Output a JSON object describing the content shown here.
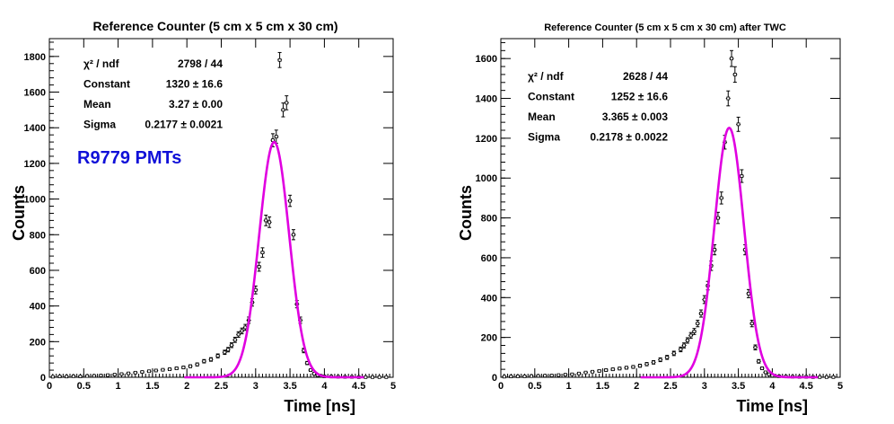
{
  "chart_data": [
    {
      "type": "scatter",
      "title": "Reference Counter (5 cm x 5 cm x 30 cm)",
      "xlabel": "Time [ns]",
      "ylabel": "Counts",
      "xlim": [
        0,
        5
      ],
      "ylim": [
        0,
        1900
      ],
      "x_ticks": [
        "0",
        "0.5",
        "1",
        "1.5",
        "2",
        "2.5",
        "3",
        "3.5",
        "4",
        "4.5",
        "5"
      ],
      "y_ticks": [
        "0",
        "200",
        "400",
        "600",
        "800",
        "1000",
        "1200",
        "1400",
        "1600",
        "1800"
      ],
      "stats": [
        {
          "label": "χ² / ndf",
          "value": "2798 / 44"
        },
        {
          "label": "Constant",
          "value": "1320 ± 16.6"
        },
        {
          "label": "Mean",
          "value": "3.27 ± 0.00"
        },
        {
          "label": "Sigma",
          "value": "0.2177 ± 0.0021"
        }
      ],
      "annotation": "R9779 PMTs",
      "annotation_color": "#1010d8",
      "fit": {
        "type": "gaussian",
        "constant": 1320,
        "mean": 3.27,
        "sigma": 0.2177,
        "color": "#e000e0"
      },
      "series": [
        {
          "x": [
            0.05,
            0.15,
            0.25,
            0.35,
            0.45,
            0.55,
            0.65,
            0.75,
            0.85,
            0.95,
            1.05,
            1.15,
            1.25,
            1.35,
            1.45,
            1.55,
            1.65,
            1.75,
            1.85,
            1.95,
            2.05,
            2.15,
            2.25,
            2.35,
            2.45,
            2.55,
            2.6,
            2.65,
            2.7,
            2.75,
            2.8,
            2.85,
            2.9,
            2.95,
            3.0,
            3.05,
            3.1,
            3.15,
            3.2,
            3.25,
            3.3,
            3.35,
            3.4,
            3.45,
            3.5,
            3.55,
            3.6,
            3.65,
            3.7,
            3.75,
            3.8,
            3.85,
            3.9,
            3.95,
            4.0,
            4.1,
            4.2,
            4.3,
            4.4,
            4.5,
            4.6,
            4.7,
            4.8,
            4.9
          ],
          "y": [
            3,
            5,
            4,
            6,
            5,
            7,
            8,
            10,
            12,
            15,
            18,
            22,
            26,
            30,
            34,
            38,
            42,
            45,
            50,
            55,
            62,
            72,
            90,
            100,
            120,
            140,
            155,
            180,
            210,
            240,
            260,
            280,
            320,
            420,
            490,
            620,
            700,
            880,
            870,
            1330,
            1350,
            1780,
            1500,
            1540,
            990,
            800,
            410,
            320,
            150,
            80,
            40,
            20,
            12,
            8,
            5,
            4,
            3,
            2,
            2,
            1,
            1,
            1,
            1,
            1
          ]
        }
      ]
    },
    {
      "type": "scatter",
      "title": "Reference Counter (5 cm x 5 cm x 30 cm) after TWC",
      "xlabel": "Time [ns]",
      "ylabel": "Counts",
      "xlim": [
        0,
        5
      ],
      "ylim": [
        0,
        1700
      ],
      "x_ticks": [
        "0",
        "0.5",
        "1",
        "1.5",
        "2",
        "2.5",
        "3",
        "3.5",
        "4",
        "4.5",
        "5"
      ],
      "y_ticks": [
        "0",
        "200",
        "400",
        "600",
        "800",
        "1000",
        "1200",
        "1400",
        "1600"
      ],
      "stats": [
        {
          "label": "χ² / ndf",
          "value": "2628 / 44"
        },
        {
          "label": "Constant",
          "value": "1252 ± 16.6"
        },
        {
          "label": "Mean",
          "value": "3.365 ± 0.003"
        },
        {
          "label": "Sigma",
          "value": "0.2178 ± 0.0022"
        }
      ],
      "fit": {
        "type": "gaussian",
        "constant": 1252,
        "mean": 3.365,
        "sigma": 0.2178,
        "color": "#e000e0"
      },
      "series": [
        {
          "x": [
            0.05,
            0.15,
            0.25,
            0.35,
            0.45,
            0.55,
            0.65,
            0.75,
            0.85,
            0.95,
            1.05,
            1.15,
            1.25,
            1.35,
            1.45,
            1.55,
            1.65,
            1.75,
            1.85,
            1.95,
            2.05,
            2.15,
            2.25,
            2.35,
            2.45,
            2.55,
            2.65,
            2.7,
            2.75,
            2.8,
            2.85,
            2.9,
            2.95,
            3.0,
            3.05,
            3.1,
            3.15,
            3.2,
            3.25,
            3.3,
            3.35,
            3.4,
            3.45,
            3.5,
            3.55,
            3.6,
            3.65,
            3.7,
            3.75,
            3.8,
            3.85,
            3.9,
            3.95,
            4.0,
            4.1,
            4.2,
            4.3,
            4.4,
            4.5,
            4.6,
            4.7,
            4.8,
            4.9
          ],
          "y": [
            3,
            4,
            5,
            5,
            6,
            7,
            8,
            9,
            11,
            13,
            15,
            19,
            24,
            28,
            32,
            36,
            40,
            44,
            48,
            52,
            58,
            66,
            75,
            88,
            100,
            120,
            140,
            160,
            185,
            210,
            230,
            270,
            320,
            390,
            460,
            560,
            640,
            800,
            900,
            1180,
            1400,
            1600,
            1520,
            1270,
            1010,
            640,
            420,
            270,
            150,
            80,
            45,
            25,
            15,
            8,
            5,
            4,
            3,
            2,
            2,
            1,
            1,
            1,
            1
          ]
        }
      ]
    }
  ]
}
